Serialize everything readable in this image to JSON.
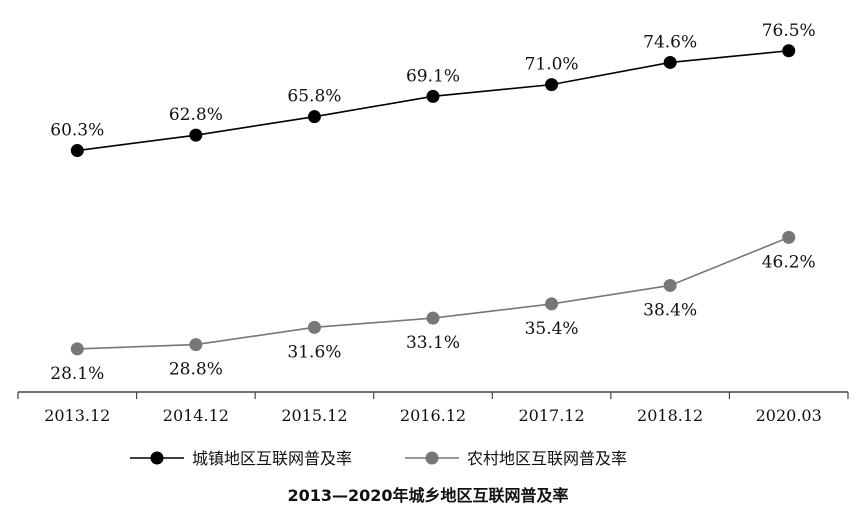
{
  "chart_data": {
    "type": "line",
    "title": "2013—2020年城乡地区互联网普及率",
    "xlabel": "",
    "ylabel": "",
    "categories": [
      "2013.12",
      "2014.12",
      "2015.12",
      "2016.12",
      "2017.12",
      "2018.12",
      "2020.03"
    ],
    "ylim": [
      0,
      80
    ],
    "grid": false,
    "legend_position": "bottom",
    "series": [
      {
        "name": "城镇地区互联网普及率",
        "values": [
          60.3,
          62.8,
          65.8,
          69.1,
          71.0,
          74.6,
          76.5
        ],
        "labels": [
          "60.3%",
          "62.8%",
          "65.8%",
          "69.1%",
          "71.0%",
          "74.6%",
          "76.5%"
        ],
        "color": "#000000",
        "label_position": "above"
      },
      {
        "name": "农村地区互联网普及率",
        "values": [
          28.1,
          28.8,
          31.6,
          33.1,
          35.4,
          38.4,
          46.2
        ],
        "labels": [
          "28.1%",
          "28.8%",
          "31.6%",
          "33.1%",
          "35.4%",
          "38.4%",
          "46.2%"
        ],
        "color": "#777777",
        "label_position": "below"
      }
    ]
  }
}
